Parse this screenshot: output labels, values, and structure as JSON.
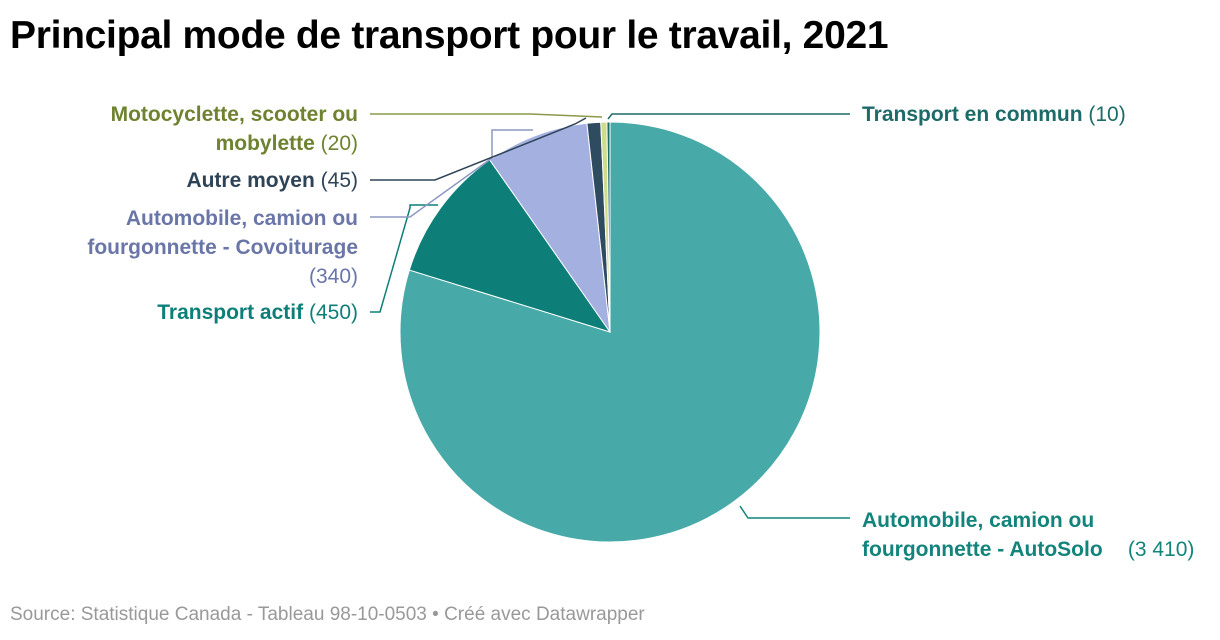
{
  "title": "Principal mode de transport pour le travail, 2021",
  "source": "Source: Statistique Canada - Tableau 98-10-0503 • Créé avec Datawrapper",
  "chart_data": {
    "type": "pie",
    "title": "Principal mode de transport pour le travail, 2021",
    "start": "top, clockwise",
    "slices": [
      {
        "label": "Automobile, camion ou fourgonnette - AutoSolo",
        "value": 3410,
        "value_label": "(3 410)",
        "color": "#48aaa8",
        "label_color": "#12847c"
      },
      {
        "label": "Transport actif",
        "value": 450,
        "value_label": "(450)",
        "color": "#0e7f78",
        "label_color": "#0e7f78"
      },
      {
        "label": "Automobile, camion ou fourgonnette - Covoiturage",
        "value": 340,
        "value_label": "(340)",
        "color": "#a3b0e0",
        "label_color": "#6a76a8"
      },
      {
        "label": "Autre moyen",
        "value": 45,
        "value_label": "(45)",
        "color": "#2f4b5f",
        "label_color": "#2f4357"
      },
      {
        "label": "Motocyclette, scooter ou mobylette",
        "value": 20,
        "value_label": "(20)",
        "color": "#cfdc8c",
        "label_color": "#6e8230"
      },
      {
        "label": "Transport en commun",
        "value": 10,
        "value_label": "(10)",
        "color": "#1d6b68",
        "label_color": "#1d6b68"
      }
    ]
  }
}
